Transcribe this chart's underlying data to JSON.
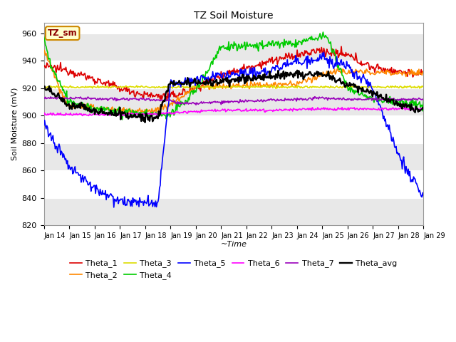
{
  "title": "TZ Soil Moisture",
  "xlabel": "~Time",
  "ylabel": "Soil Moisture (mV)",
  "ylim": [
    820,
    968
  ],
  "yticks": [
    820,
    840,
    860,
    880,
    900,
    920,
    940,
    960
  ],
  "xlim": [
    0,
    15
  ],
  "xtick_labels": [
    "Jan 14",
    "Jan 15",
    "Jan 16",
    "Jan 17",
    "Jan 18",
    "Jan 19",
    "Jan 20",
    "Jan 21",
    "Jan 22",
    "Jan 23",
    "Jan 24",
    "Jan 25",
    "Jan 26",
    "Jan 27",
    "Jan 28",
    "Jan 29"
  ],
  "legend_label": "TZ_sm",
  "series_colors": {
    "Theta_1": "#dd0000",
    "Theta_2": "#ff8800",
    "Theta_3": "#dddd00",
    "Theta_4": "#00cc00",
    "Theta_5": "#0000ff",
    "Theta_6": "#ff00ff",
    "Theta_7": "#9900bb",
    "Theta_avg": "#000000"
  },
  "linewidth": 1.2
}
